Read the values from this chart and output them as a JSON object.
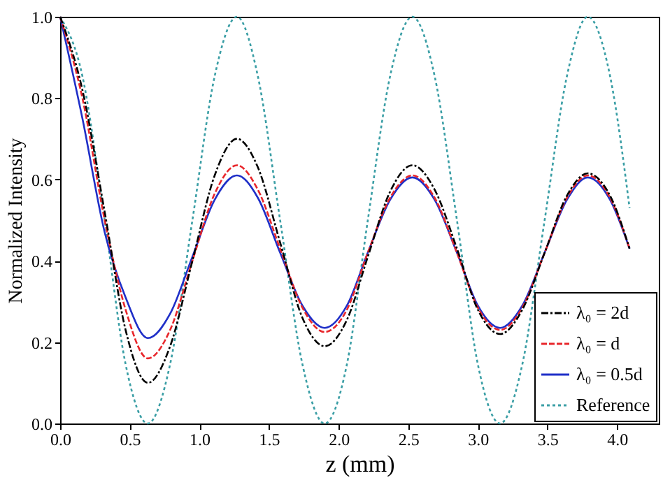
{
  "chart_data": {
    "type": "line",
    "xlabel": "z (mm)",
    "ylabel": "Normalized Intensity",
    "xlim": [
      0,
      4.3
    ],
    "ylim": [
      0,
      1
    ],
    "xticks": [
      {
        "value": 0,
        "label": "0.0"
      },
      0.5,
      {
        "value": 1,
        "label": "1.0"
      },
      1.5,
      {
        "value": 2,
        "label": "2.0"
      },
      2.5,
      {
        "value": 3,
        "label": "3.0"
      },
      3.5,
      {
        "value": 4,
        "label": "4.0"
      }
    ],
    "yticks": [
      {
        "value": 0,
        "label": "0.0"
      },
      0.2,
      0.4,
      0.6,
      0.8,
      {
        "value": 1,
        "label": "1.0"
      }
    ],
    "grid": false,
    "legend": "bottom right",
    "marker": "none",
    "x": [
      0,
      0.16,
      0.32,
      0.47,
      0.63,
      0.79,
      0.95,
      1.11,
      1.27,
      1.42,
      1.58,
      1.74,
      1.9,
      2.06,
      2.21,
      2.37,
      2.53,
      2.69,
      2.85,
      3.0,
      3.16,
      3.32,
      3.48,
      3.64,
      3.79,
      3.95,
      4.09
    ],
    "series": [
      {
        "name": "λ₀ = 2d",
        "color": "#000000",
        "line_style": "dashdot",
        "values": [
          1,
          0.82,
          0.52,
          0.23,
          0.1,
          0.19,
          0.4,
          0.61,
          0.7,
          0.63,
          0.445,
          0.26,
          0.19,
          0.255,
          0.41,
          0.57,
          0.635,
          0.575,
          0.43,
          0.28,
          0.22,
          0.28,
          0.42,
          0.56,
          0.615,
          0.56,
          0.43
        ]
      },
      {
        "name": "λ₀ = d",
        "color": "#e8262b",
        "line_style": "dashed",
        "values": [
          1,
          0.8,
          0.5,
          0.28,
          0.16,
          0.23,
          0.4,
          0.565,
          0.635,
          0.575,
          0.43,
          0.285,
          0.225,
          0.28,
          0.42,
          0.555,
          0.61,
          0.555,
          0.42,
          0.285,
          0.23,
          0.285,
          0.42,
          0.555,
          0.61,
          0.555,
          0.43
        ]
      },
      {
        "name": "λ₀ = 0.5d",
        "color": "#1f2fc8",
        "line_style": "solid",
        "values": [
          1,
          0.75,
          0.47,
          0.31,
          0.21,
          0.27,
          0.41,
          0.55,
          0.61,
          0.555,
          0.42,
          0.29,
          0.235,
          0.29,
          0.42,
          0.55,
          0.605,
          0.55,
          0.42,
          0.29,
          0.235,
          0.29,
          0.42,
          0.55,
          0.605,
          0.55,
          0.43
        ]
      },
      {
        "name": "Reference",
        "color": "#3a9ea5",
        "line_style": "dotted",
        "values": [
          1,
          0.854,
          0.5,
          0.146,
          0,
          0.146,
          0.5,
          0.854,
          1,
          0.854,
          0.5,
          0.146,
          0,
          0.146,
          0.5,
          0.854,
          1,
          0.854,
          0.5,
          0.146,
          0,
          0.146,
          0.5,
          0.854,
          1,
          0.854,
          0.53
        ]
      }
    ]
  }
}
